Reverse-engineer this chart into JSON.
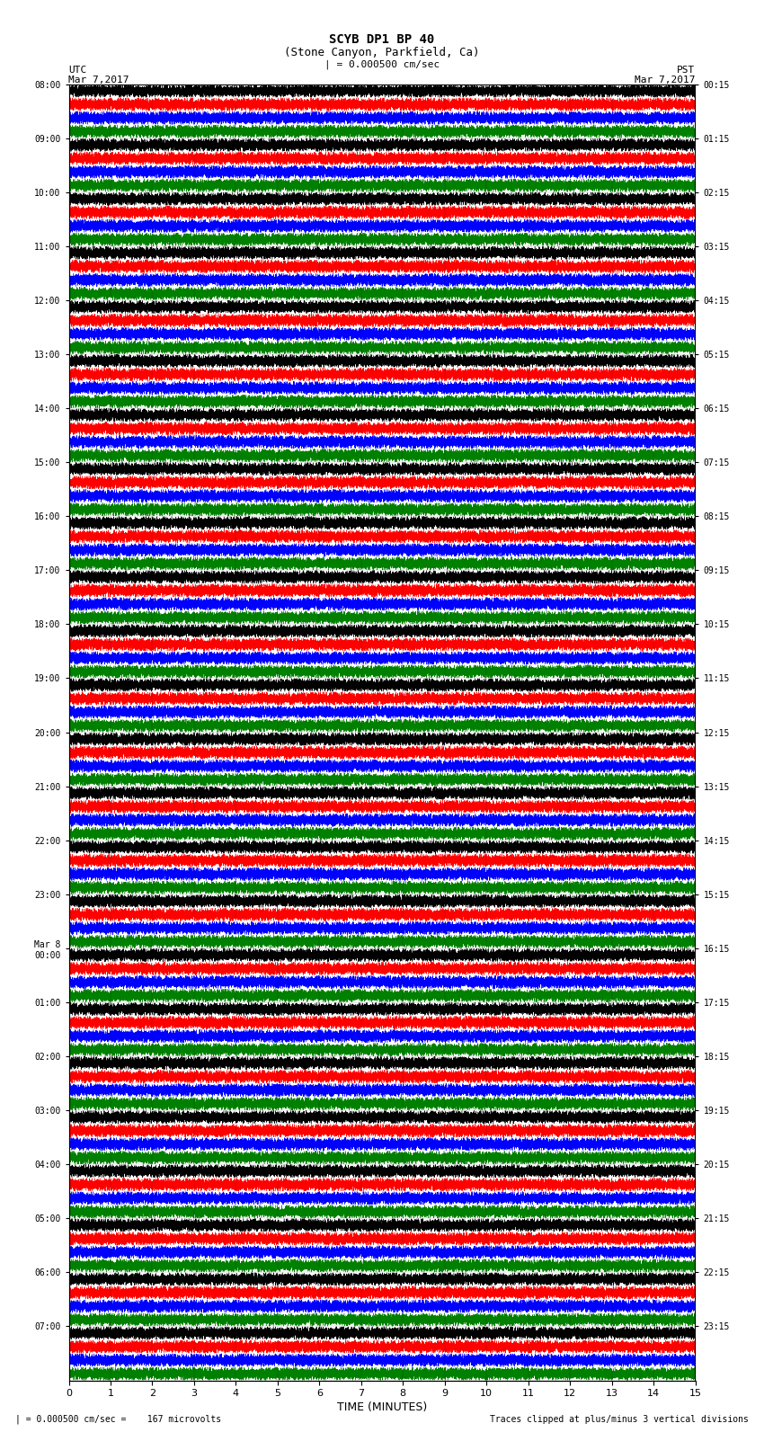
{
  "title_line1": "SCYB DP1 BP 40",
  "title_line2": "(Stone Canyon, Parkfield, Ca)",
  "scale_label": "| = 0.000500 cm/sec",
  "left_label": "UTC",
  "left_date": "Mar 7,2017",
  "right_label": "PST",
  "right_date": "Mar 7,2017",
  "xlabel": "TIME (MINUTES)",
  "footer_left": "| = 0.000500 cm/sec =    167 microvolts",
  "footer_right": "Traces clipped at plus/minus 3 vertical divisions",
  "utc_labels": [
    "08:00",
    "09:00",
    "10:00",
    "11:00",
    "12:00",
    "13:00",
    "14:00",
    "15:00",
    "16:00",
    "17:00",
    "18:00",
    "19:00",
    "20:00",
    "21:00",
    "22:00",
    "23:00",
    "Mar 8\n00:00",
    "01:00",
    "02:00",
    "03:00",
    "04:00",
    "05:00",
    "06:00",
    "07:00"
  ],
  "pst_labels": [
    "00:15",
    "01:15",
    "02:15",
    "03:15",
    "04:15",
    "05:15",
    "06:15",
    "07:15",
    "08:15",
    "09:15",
    "10:15",
    "11:15",
    "12:15",
    "13:15",
    "14:15",
    "15:15",
    "16:15",
    "17:15",
    "18:15",
    "19:15",
    "20:15",
    "21:15",
    "22:15",
    "23:15"
  ],
  "trace_colors": [
    "black",
    "red",
    "blue",
    "green"
  ],
  "n_hours": 24,
  "n_traces_per_hour": 4,
  "minutes": 15,
  "sample_rate": 40,
  "fig_width": 8.5,
  "fig_height": 16.13,
  "bg_color": "white",
  "trace_linewidth": 0.3,
  "xmin": 0,
  "xmax": 15
}
